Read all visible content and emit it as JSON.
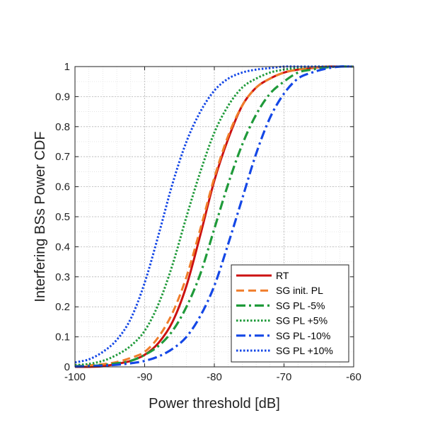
{
  "chart_data": {
    "type": "line",
    "title": "",
    "xlabel": "Power threshold [dB]",
    "ylabel": "Interfering BSs Power CDF",
    "xlim": [
      -100,
      -60
    ],
    "ylim": [
      0,
      1
    ],
    "xticks": [
      -100,
      -90,
      -80,
      -70,
      -60
    ],
    "yticks": [
      0,
      0.1,
      0.2,
      0.3,
      0.4,
      0.5,
      0.6,
      0.7,
      0.8,
      0.9,
      1
    ],
    "xtick_labels": [
      "-100",
      "-90",
      "-80",
      "-70",
      "-60"
    ],
    "ytick_labels": [
      "0",
      "0.1",
      "0.2",
      "0.3",
      "0.4",
      "0.5",
      "0.6",
      "0.7",
      "0.8",
      "0.9",
      "1"
    ],
    "grid": true,
    "legend_position": "bottom-right",
    "x": [
      -100,
      -98,
      -96,
      -94,
      -92,
      -90,
      -88,
      -86,
      -84,
      -82,
      -80,
      -78,
      -76,
      -74,
      -72,
      -70,
      -68,
      -66,
      -64,
      -62,
      -60
    ],
    "series": [
      {
        "name": "RT",
        "color": "#cc1111",
        "style": "solid",
        "values": [
          0.0,
          0.0,
          0.002,
          0.01,
          0.02,
          0.04,
          0.08,
          0.15,
          0.27,
          0.44,
          0.62,
          0.76,
          0.87,
          0.93,
          0.96,
          0.98,
          0.99,
          0.995,
          1.0,
          1.0,
          1.0
        ]
      },
      {
        "name": "SG init. PL",
        "color": "#f07d2a",
        "style": "dashed",
        "values": [
          0.003,
          0.005,
          0.009,
          0.016,
          0.03,
          0.05,
          0.1,
          0.18,
          0.3,
          0.46,
          0.63,
          0.77,
          0.87,
          0.93,
          0.96,
          0.98,
          0.99,
          0.996,
          1.0,
          1.0,
          1.0
        ]
      },
      {
        "name": "SG PL -5%",
        "color": "#1f9a3a",
        "style": "dashdot",
        "values": [
          0.002,
          0.003,
          0.006,
          0.012,
          0.02,
          0.04,
          0.07,
          0.12,
          0.2,
          0.31,
          0.46,
          0.61,
          0.74,
          0.84,
          0.91,
          0.95,
          0.98,
          0.99,
          0.997,
          1.0,
          1.0
        ]
      },
      {
        "name": "SG PL +5%",
        "color": "#1f9a3a",
        "style": "dotted",
        "values": [
          0.006,
          0.01,
          0.02,
          0.04,
          0.07,
          0.12,
          0.21,
          0.34,
          0.5,
          0.65,
          0.78,
          0.87,
          0.93,
          0.96,
          0.98,
          0.99,
          0.996,
          1.0,
          1.0,
          1.0,
          1.0
        ]
      },
      {
        "name": "SG PL -10%",
        "color": "#1447e6",
        "style": "dashdot",
        "values": [
          0.001,
          0.002,
          0.004,
          0.007,
          0.012,
          0.02,
          0.035,
          0.06,
          0.1,
          0.17,
          0.27,
          0.41,
          0.56,
          0.71,
          0.83,
          0.91,
          0.96,
          0.98,
          0.993,
          1.0,
          1.0
        ]
      },
      {
        "name": "SG PL +10%",
        "color": "#1447e6",
        "style": "dotted",
        "values": [
          0.015,
          0.025,
          0.05,
          0.09,
          0.16,
          0.28,
          0.44,
          0.61,
          0.75,
          0.85,
          0.92,
          0.96,
          0.98,
          0.99,
          0.995,
          1.0,
          1.0,
          1.0,
          1.0,
          1.0,
          1.0
        ]
      }
    ]
  }
}
